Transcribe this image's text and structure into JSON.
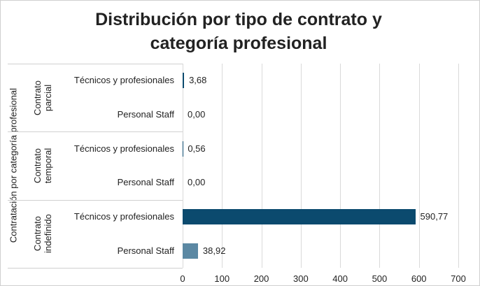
{
  "chart_data": {
    "type": "bar",
    "orientation": "horizontal",
    "title": "Distribución por tipo de contrato y categoría profesional",
    "y_axis_label": "Contratación por categoría profesional",
    "groups": [
      {
        "name": "Contrato parcial",
        "size": 2
      },
      {
        "name": "Contrato temporal",
        "size": 2
      },
      {
        "name": "Contrato indefinido",
        "size": 2
      }
    ],
    "categories": [
      "Técnicos y profesionales",
      "Personal Staff",
      "Técnicos y profesionales",
      "Personal Staff",
      "Técnicos y profesionales",
      "Personal Staff"
    ],
    "values": [
      3.68,
      0.0,
      0.56,
      0.0,
      590.77,
      38.92
    ],
    "value_labels": [
      "3,68",
      "0,00",
      "0,56",
      "0,00",
      "590,77",
      "38,92"
    ],
    "colors": [
      "#0b4a6e",
      "#5b88a3",
      "#0b4a6e",
      "#5b88a3",
      "#0b4a6e",
      "#5b88a3"
    ],
    "xlim": [
      0,
      700
    ],
    "xticks": [
      0,
      100,
      200,
      300,
      400,
      500,
      600,
      700
    ],
    "grid": true
  }
}
